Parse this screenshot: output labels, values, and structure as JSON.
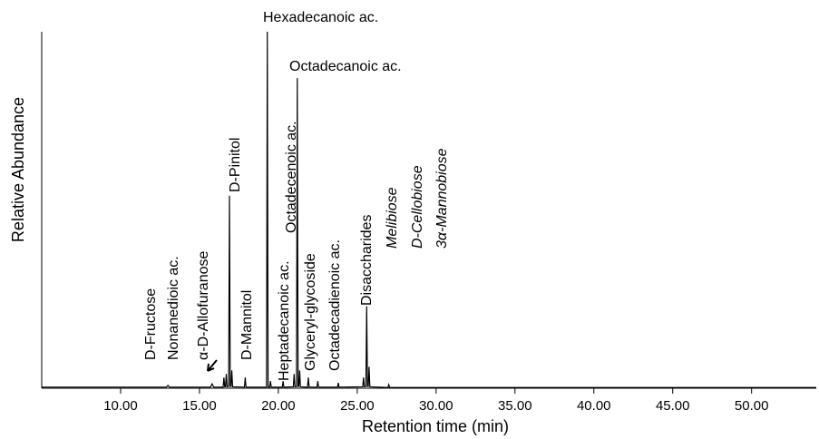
{
  "chart_data": {
    "type": "line",
    "x_label": "Retention time (min)",
    "y_label": "Relative Abundance",
    "xlim": [
      5.0,
      54.1
    ],
    "ylim": [
      0,
      100
    ],
    "xticks": [
      {
        "value": 10,
        "label": "10.00"
      },
      {
        "value": 15,
        "label": "15.00"
      },
      {
        "value": 20,
        "label": "20.00"
      },
      {
        "value": 25,
        "label": "25.00"
      },
      {
        "value": 30,
        "label": "30.00"
      },
      {
        "value": 35,
        "label": "35.00"
      },
      {
        "value": 40,
        "label": "40.00"
      },
      {
        "value": 45,
        "label": "45.00"
      },
      {
        "value": 50,
        "label": "50.00"
      }
    ],
    "series": [
      {
        "color": "#000000",
        "x": [
          5.0,
          12.9,
          13.0,
          13.1,
          15.7,
          15.8,
          15.9,
          16.5,
          16.55,
          16.6,
          16.65,
          16.7,
          16.75,
          16.85,
          16.9,
          16.95,
          17.0,
          17.05,
          17.1,
          17.85,
          17.9,
          17.95,
          19.25,
          19.3,
          19.35,
          19.45,
          19.5,
          19.55,
          20.25,
          20.3,
          20.35,
          20.95,
          21.0,
          21.05,
          21.15,
          21.2,
          21.25,
          21.3,
          21.35,
          21.4,
          21.85,
          21.9,
          21.95,
          22.45,
          22.5,
          22.55,
          23.75,
          23.8,
          23.85,
          25.35,
          25.4,
          25.45,
          25.55,
          25.6,
          25.65,
          25.7,
          25.75,
          25.8,
          26.95,
          27.0,
          27.05,
          54.1
        ],
        "values": [
          0.3,
          0.3,
          0.8,
          0.3,
          0.3,
          1.2,
          0.3,
          0.3,
          3,
          0.4,
          0.4,
          4,
          0.4,
          0.5,
          54,
          0.5,
          0.5,
          5,
          0.4,
          0.3,
          3,
          0.3,
          0.3,
          100,
          0.3,
          0.3,
          2,
          0.3,
          0.3,
          2,
          0.3,
          0.4,
          4,
          0.4,
          0.4,
          87,
          0.5,
          0.5,
          5,
          0.4,
          0.3,
          3,
          0.3,
          0.3,
          2,
          0.3,
          0.3,
          1.5,
          0.3,
          0.4,
          3,
          0.4,
          0.5,
          23,
          0.5,
          0.5,
          6,
          0.4,
          0.2,
          1,
          0.2,
          0.2
        ]
      }
    ],
    "annotations": [
      "Hexadecanoic ac.",
      "Octadecanoic ac.",
      "D-Fructose",
      "Nonanedioic ac.",
      "α-D-Allofuranose",
      "D-Pinitol",
      "D-Mannitol",
      "Heptadecanoic ac.",
      "Octadecenoic ac.",
      "Glyceryl-glycoside",
      "Octadecadienoic ac.",
      "Disaccharides",
      "Melibiose",
      "D-Cellobiose",
      "3α-Mannobiose"
    ]
  }
}
